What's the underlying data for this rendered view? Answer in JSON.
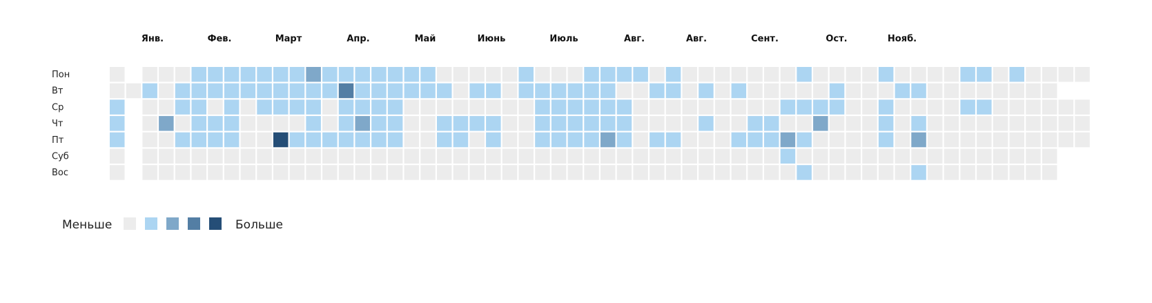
{
  "chart_data": {
    "type": "heatmap",
    "months": [
      "Янв.",
      "Фев.",
      "Март",
      "Апр.",
      "Май",
      "Июнь",
      "Июль",
      "Авг.",
      "Авг.",
      "Сент.",
      "Ост.",
      "Нояб."
    ],
    "days": [
      "Пон",
      "Вт",
      "Ср",
      "Чт",
      "Пт",
      "Суб",
      "Вос"
    ],
    "level_colors": [
      "#ececec",
      "#acd5f2",
      "#7fa8c9",
      "#537ea4",
      "#254e77"
    ],
    "rows": [
      "0-0001111111211111110000010001111010000000100001000011010000",
      "0010111111111131111110110111111001101010000010001100000000",
      "1-0011010111101111000000001111110000000001111001000011000000",
      "1-0201110000101211001111001111110000100110020001010000000000",
      "1-0011110041111111001101001111210110001112100001020000000000",
      "0-00000000000000000000000000000000000000010000000000000000",
      "0-00000000000000000000000000000000000000001000000100000000"
    ],
    "legend": {
      "less": "Меньше",
      "more": "Больше"
    }
  }
}
